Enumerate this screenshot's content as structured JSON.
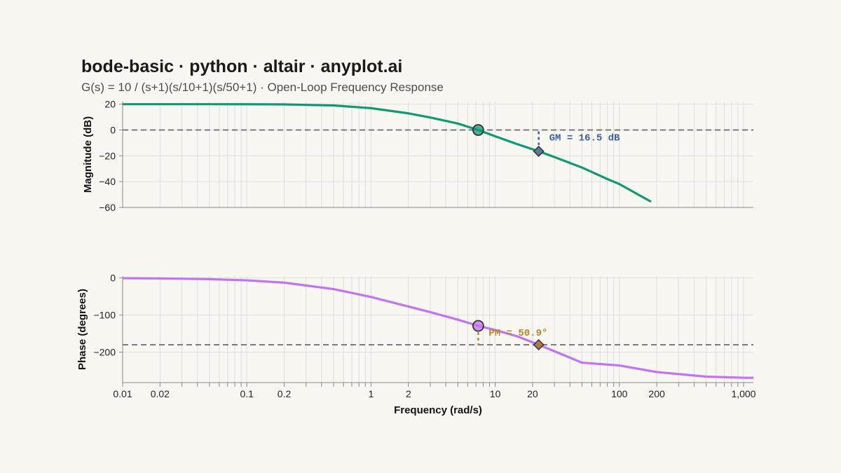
{
  "chart_data": {
    "type": "line",
    "title": "bode-basic · python · altair · anyplot.ai",
    "subtitle": "G(s) = 10 / (s+1)(s/10+1)(s/50+1) · Open-Loop Frequency Response",
    "xlabel": "Frequency (rad/s)",
    "x_scale": "log",
    "xlim": [
      0.01,
      1200
    ],
    "x_ticks": [
      {
        "value": 0.01,
        "label": "0.01"
      },
      {
        "value": 0.02,
        "label": "0.02"
      },
      {
        "value": 0.1,
        "label": "0.1"
      },
      {
        "value": 0.2,
        "label": "0.2"
      },
      {
        "value": 1,
        "label": "1"
      },
      {
        "value": 2,
        "label": "2"
      },
      {
        "value": 10,
        "label": "10"
      },
      {
        "value": 20,
        "label": "20"
      },
      {
        "value": 100,
        "label": "100"
      },
      {
        "value": 200,
        "label": "200"
      },
      {
        "value": 1000,
        "label": "1,000"
      }
    ],
    "grid": true,
    "panels": [
      {
        "name": "magnitude",
        "ylabel": "Magnitude (dB)",
        "ylim": [
          -60,
          22
        ],
        "y_ticks": [
          {
            "value": 20,
            "label": "20"
          },
          {
            "value": 0,
            "label": "0"
          },
          {
            "value": -20,
            "label": "−20"
          },
          {
            "value": -40,
            "label": "−40"
          },
          {
            "value": -60,
            "label": "−60"
          }
        ],
        "reference_line": 0,
        "color": "#109A74",
        "x": [
          0.01,
          0.02,
          0.05,
          0.1,
          0.2,
          0.5,
          1,
          2,
          3,
          5,
          7.3,
          10,
          15,
          22.4,
          30,
          50,
          80,
          100,
          150,
          180
        ],
        "y": [
          20,
          20,
          19.99,
          19.96,
          19.83,
          19.02,
          16.9,
          12.9,
          9.7,
          5.0,
          0,
          -4.9,
          -10.9,
          -16.5,
          -21.0,
          -29.1,
          -38.0,
          -41.9,
          -51.4,
          -55.6
        ],
        "marker": {
          "x": 7.3,
          "y": 0,
          "shape": "circle"
        },
        "margin_marker": {
          "x": 22.4,
          "y": -16.5,
          "shape": "diamond"
        },
        "annotation": {
          "text": "GM = 16.5 dB",
          "color": "#3B5FA0"
        }
      },
      {
        "name": "phase",
        "ylabel": "Phase (degrees)",
        "ylim": [
          -282,
          5
        ],
        "y_ticks": [
          {
            "value": 0,
            "label": "0"
          },
          {
            "value": -100,
            "label": "−100"
          },
          {
            "value": -200,
            "label": "−200"
          }
        ],
        "reference_line": -180,
        "color": "#C273F0",
        "x": [
          0.01,
          0.02,
          0.05,
          0.1,
          0.2,
          0.5,
          1,
          2,
          3,
          5,
          7.3,
          10,
          15,
          22.4,
          30,
          50,
          100,
          200,
          500,
          1000,
          1200
        ],
        "y": [
          -0.7,
          -1.3,
          -3.2,
          -6.4,
          -12.7,
          -30.1,
          -51.3,
          -77.0,
          -92.2,
          -112.4,
          -129.1,
          -140.3,
          -157.2,
          -179.9,
          -197.5,
          -228.3,
          -235.9,
          -253.6,
          -265.9,
          -268.9,
          -269.1
        ],
        "marker": {
          "x": 7.3,
          "y": -129.1,
          "shape": "circle"
        },
        "margin_marker": {
          "x": 22.4,
          "y": -180,
          "shape": "diamond"
        },
        "annotation": {
          "text": "PM = 50.9°",
          "color": "#B8862E"
        }
      }
    ]
  }
}
